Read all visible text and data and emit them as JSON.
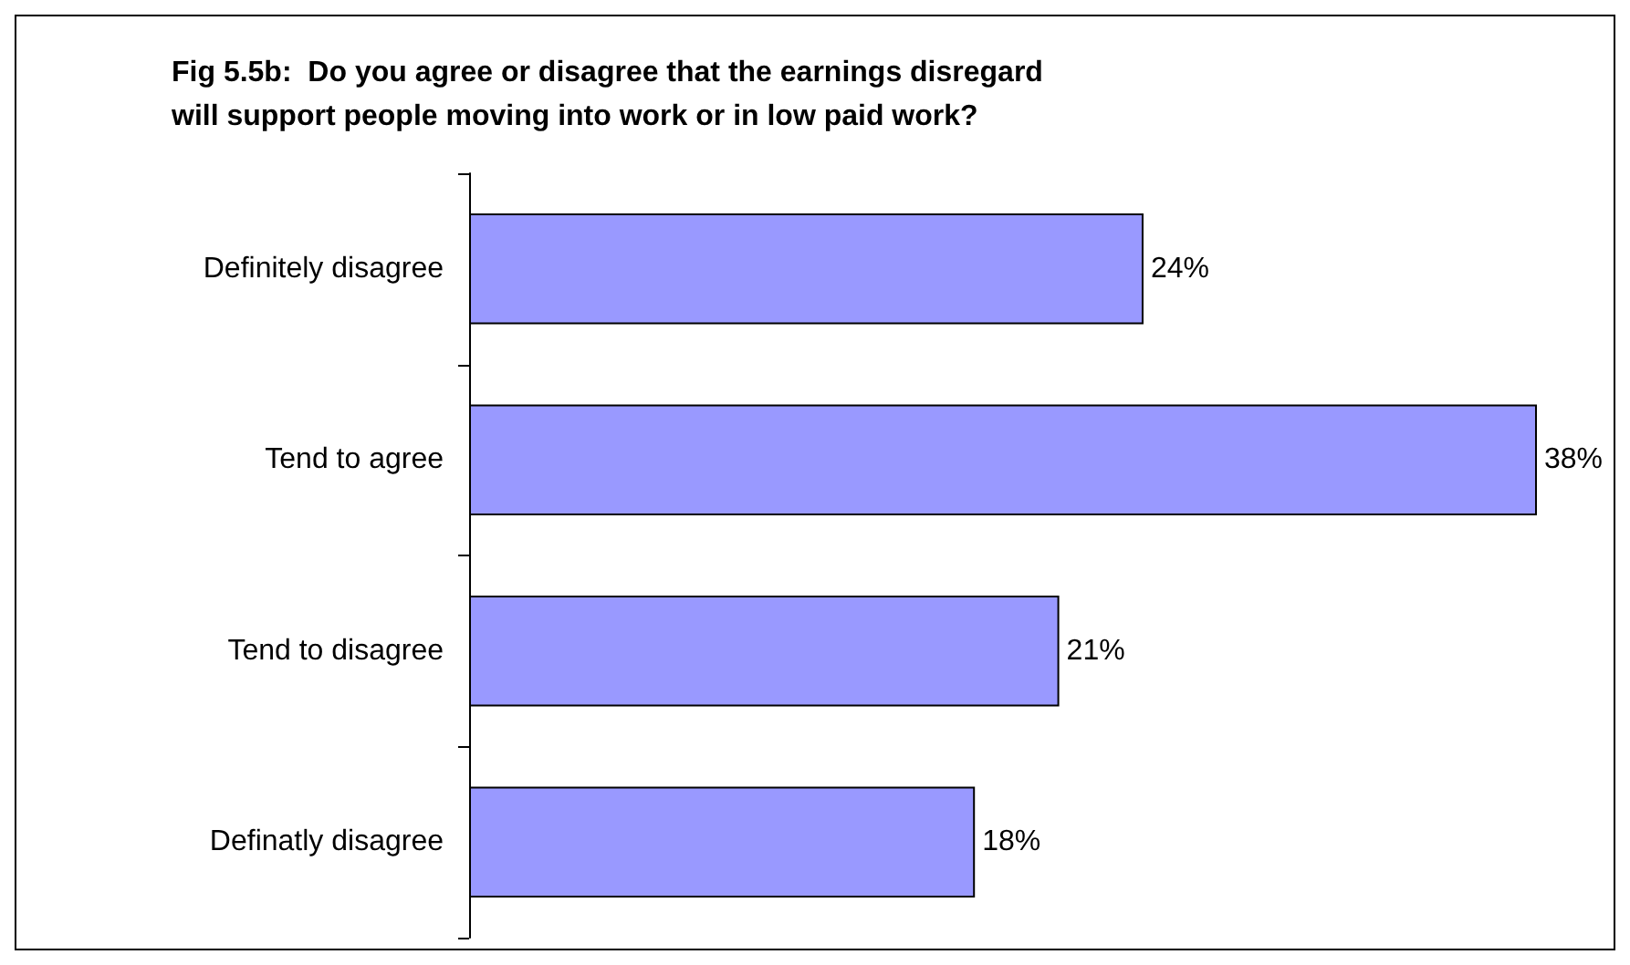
{
  "chart_data": {
    "type": "bar",
    "orientation": "horizontal",
    "title": "Fig 5.5b:  Do you agree or disagree that the earnings disregard\nwill support people moving into work or in low paid work?",
    "categories": [
      "Definitely disagree",
      "Tend to agree",
      "Tend to disagree",
      "Definatly disagree"
    ],
    "values": [
      24,
      38,
      21,
      18
    ],
    "value_labels": [
      "24%",
      "38%",
      "21%",
      "18%"
    ],
    "color": "#9999ff",
    "tick_labels": "y"
  }
}
